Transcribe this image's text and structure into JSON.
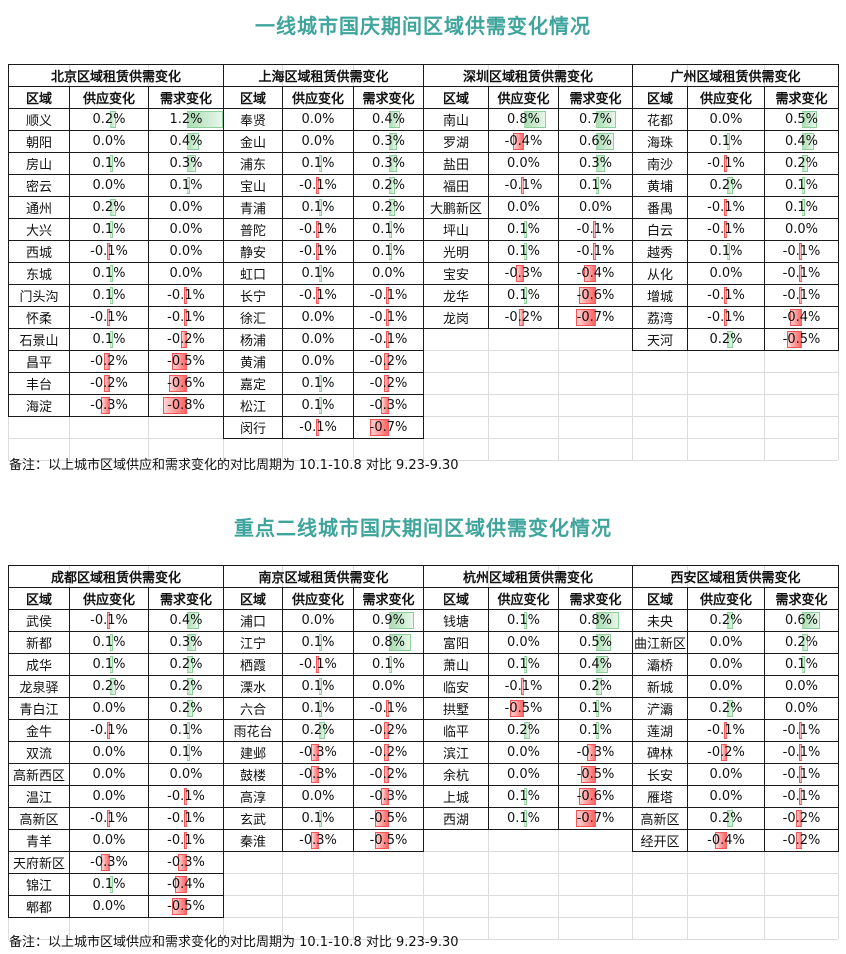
{
  "chart_data": [
    {
      "type": "table",
      "title": "一线城市国庆期间区域供需变化情况",
      "note": "备注：以上城市区域供应和需求变化的对比周期为 10.1-10.8 对比 9.23-9.30",
      "tables": [
        {
          "city_label": "北京区域租赁供需变化",
          "columns": [
            "区域",
            "供应变化",
            "需求变化"
          ],
          "rows": [
            [
              "顺义",
              0.2,
              1.2
            ],
            [
              "朝阳",
              0.0,
              0.4
            ],
            [
              "房山",
              0.1,
              0.3
            ],
            [
              "密云",
              0.0,
              0.1
            ],
            [
              "通州",
              0.2,
              0.0
            ],
            [
              "大兴",
              0.1,
              0.0
            ],
            [
              "西城",
              -0.1,
              0.0
            ],
            [
              "东城",
              0.1,
              0.0
            ],
            [
              "门头沟",
              0.1,
              -0.1
            ],
            [
              "怀柔",
              -0.1,
              -0.1
            ],
            [
              "石景山",
              0.1,
              -0.2
            ],
            [
              "昌平",
              -0.2,
              -0.5
            ],
            [
              "丰台",
              -0.2,
              -0.6
            ],
            [
              "海淀",
              -0.3,
              -0.8
            ]
          ]
        },
        {
          "city_label": "上海区域租赁供需变化",
          "columns": [
            "区域",
            "供应变化",
            "需求变化"
          ],
          "rows": [
            [
              "奉贤",
              0.0,
              0.4
            ],
            [
              "金山",
              0.0,
              0.3
            ],
            [
              "浦东",
              0.1,
              0.3
            ],
            [
              "宝山",
              -0.1,
              0.2
            ],
            [
              "青浦",
              0.1,
              0.2
            ],
            [
              "普陀",
              -0.1,
              0.1
            ],
            [
              "静安",
              -0.1,
              0.1
            ],
            [
              "虹口",
              0.1,
              0.0
            ],
            [
              "长宁",
              -0.1,
              -0.1
            ],
            [
              "徐汇",
              0.0,
              -0.1
            ],
            [
              "杨浦",
              0.0,
              -0.1
            ],
            [
              "黄浦",
              0.0,
              -0.2
            ],
            [
              "嘉定",
              0.1,
              -0.2
            ],
            [
              "松江",
              0.1,
              -0.3
            ],
            [
              "闵行",
              -0.1,
              -0.7
            ]
          ]
        },
        {
          "city_label": "深圳区域租赁供需变化",
          "columns": [
            "区域",
            "供应变化",
            "需求变化"
          ],
          "rows": [
            [
              "南山",
              0.8,
              0.7
            ],
            [
              "罗湖",
              -0.4,
              0.6
            ],
            [
              "盐田",
              0.0,
              0.3
            ],
            [
              "福田",
              -0.1,
              0.1
            ],
            [
              "大鹏新区",
              0.0,
              0.0
            ],
            [
              "坪山",
              0.1,
              -0.1
            ],
            [
              "光明",
              0.1,
              -0.1
            ],
            [
              "宝安",
              -0.3,
              -0.4
            ],
            [
              "龙华",
              0.1,
              -0.6
            ],
            [
              "龙岗",
              -0.2,
              -0.7
            ]
          ]
        },
        {
          "city_label": "广州区域租赁供需变化",
          "columns": [
            "区域",
            "供应变化",
            "需求变化"
          ],
          "rows": [
            [
              "花都",
              0.0,
              0.5
            ],
            [
              "海珠",
              0.1,
              0.4
            ],
            [
              "南沙",
              -0.1,
              0.2
            ],
            [
              "黄埔",
              0.2,
              0.1
            ],
            [
              "番禺",
              -0.1,
              0.1
            ],
            [
              "白云",
              -0.1,
              0.0
            ],
            [
              "越秀",
              0.1,
              -0.1
            ],
            [
              "从化",
              0.0,
              -0.1
            ],
            [
              "增城",
              -0.1,
              -0.1
            ],
            [
              "荔湾",
              -0.1,
              -0.4
            ],
            [
              "天河",
              0.2,
              -0.5
            ]
          ]
        }
      ]
    },
    {
      "type": "table",
      "title": "重点二线城市国庆期间区域供需变化情况",
      "note": "备注：以上城市区域供应和需求变化的对比周期为 10.1-10.8 对比 9.23-9.30",
      "tables": [
        {
          "city_label": "成都区域租赁供需变化",
          "columns": [
            "区域",
            "供应变化",
            "需求变化"
          ],
          "rows": [
            [
              "武侯",
              -0.1,
              0.4
            ],
            [
              "新都",
              0.1,
              0.3
            ],
            [
              "成华",
              0.1,
              0.2
            ],
            [
              "龙泉驿",
              0.2,
              0.2
            ],
            [
              "青白江",
              0.0,
              0.2
            ],
            [
              "金牛",
              -0.1,
              0.1
            ],
            [
              "双流",
              0.0,
              0.1
            ],
            [
              "高新西区",
              0.0,
              0.0
            ],
            [
              "温江",
              0.0,
              -0.1
            ],
            [
              "高新区",
              -0.1,
              -0.1
            ],
            [
              "青羊",
              0.0,
              -0.1
            ],
            [
              "天府新区",
              -0.3,
              -0.3
            ],
            [
              "锦江",
              0.1,
              -0.4
            ],
            [
              "郫都",
              0.0,
              -0.5
            ]
          ]
        },
        {
          "city_label": "南京区域租赁供需变化",
          "columns": [
            "区域",
            "供应变化",
            "需求变化"
          ],
          "rows": [
            [
              "浦口",
              0.0,
              0.9
            ],
            [
              "江宁",
              0.1,
              0.8
            ],
            [
              "栖霞",
              -0.1,
              0.1
            ],
            [
              "溧水",
              0.1,
              0.0
            ],
            [
              "六合",
              0.1,
              -0.1
            ],
            [
              "雨花台",
              0.2,
              -0.2
            ],
            [
              "建邺",
              -0.3,
              -0.2
            ],
            [
              "鼓楼",
              -0.3,
              -0.2
            ],
            [
              "高淳",
              0.0,
              -0.3
            ],
            [
              "玄武",
              0.1,
              -0.5
            ],
            [
              "秦淮",
              -0.3,
              -0.5
            ]
          ]
        },
        {
          "city_label": "杭州区域租赁供需变化",
          "columns": [
            "区域",
            "供应变化",
            "需求变化"
          ],
          "rows": [
            [
              "钱塘",
              0.1,
              0.8
            ],
            [
              "富阳",
              0.0,
              0.5
            ],
            [
              "萧山",
              0.1,
              0.4
            ],
            [
              "临安",
              -0.1,
              0.2
            ],
            [
              "拱墅",
              -0.5,
              0.1
            ],
            [
              "临平",
              0.2,
              0.1
            ],
            [
              "滨江",
              0.0,
              -0.3
            ],
            [
              "余杭",
              0.0,
              -0.5
            ],
            [
              "上城",
              0.1,
              -0.6
            ],
            [
              "西湖",
              0.1,
              -0.7
            ]
          ]
        },
        {
          "city_label": "西安区域租赁供需变化",
          "columns": [
            "区域",
            "供应变化",
            "需求变化"
          ],
          "rows": [
            [
              "未央",
              0.2,
              0.6
            ],
            [
              "曲江新区",
              0.0,
              0.2
            ],
            [
              "灞桥",
              0.0,
              0.1
            ],
            [
              "新城",
              0.0,
              0.0
            ],
            [
              "浐灞",
              0.2,
              0.0
            ],
            [
              "莲湖",
              -0.1,
              -0.1
            ],
            [
              "碑林",
              -0.2,
              -0.1
            ],
            [
              "长安",
              0.0,
              -0.1
            ],
            [
              "雁塔",
              0.0,
              -0.1
            ],
            [
              "高新区",
              0.2,
              -0.2
            ],
            [
              "经开区",
              -0.4,
              -0.2
            ]
          ]
        }
      ]
    }
  ],
  "colors": {
    "title": "#3fa59c",
    "positive_bar": "#8fcf9b",
    "negative_bar": "#f25555"
  }
}
